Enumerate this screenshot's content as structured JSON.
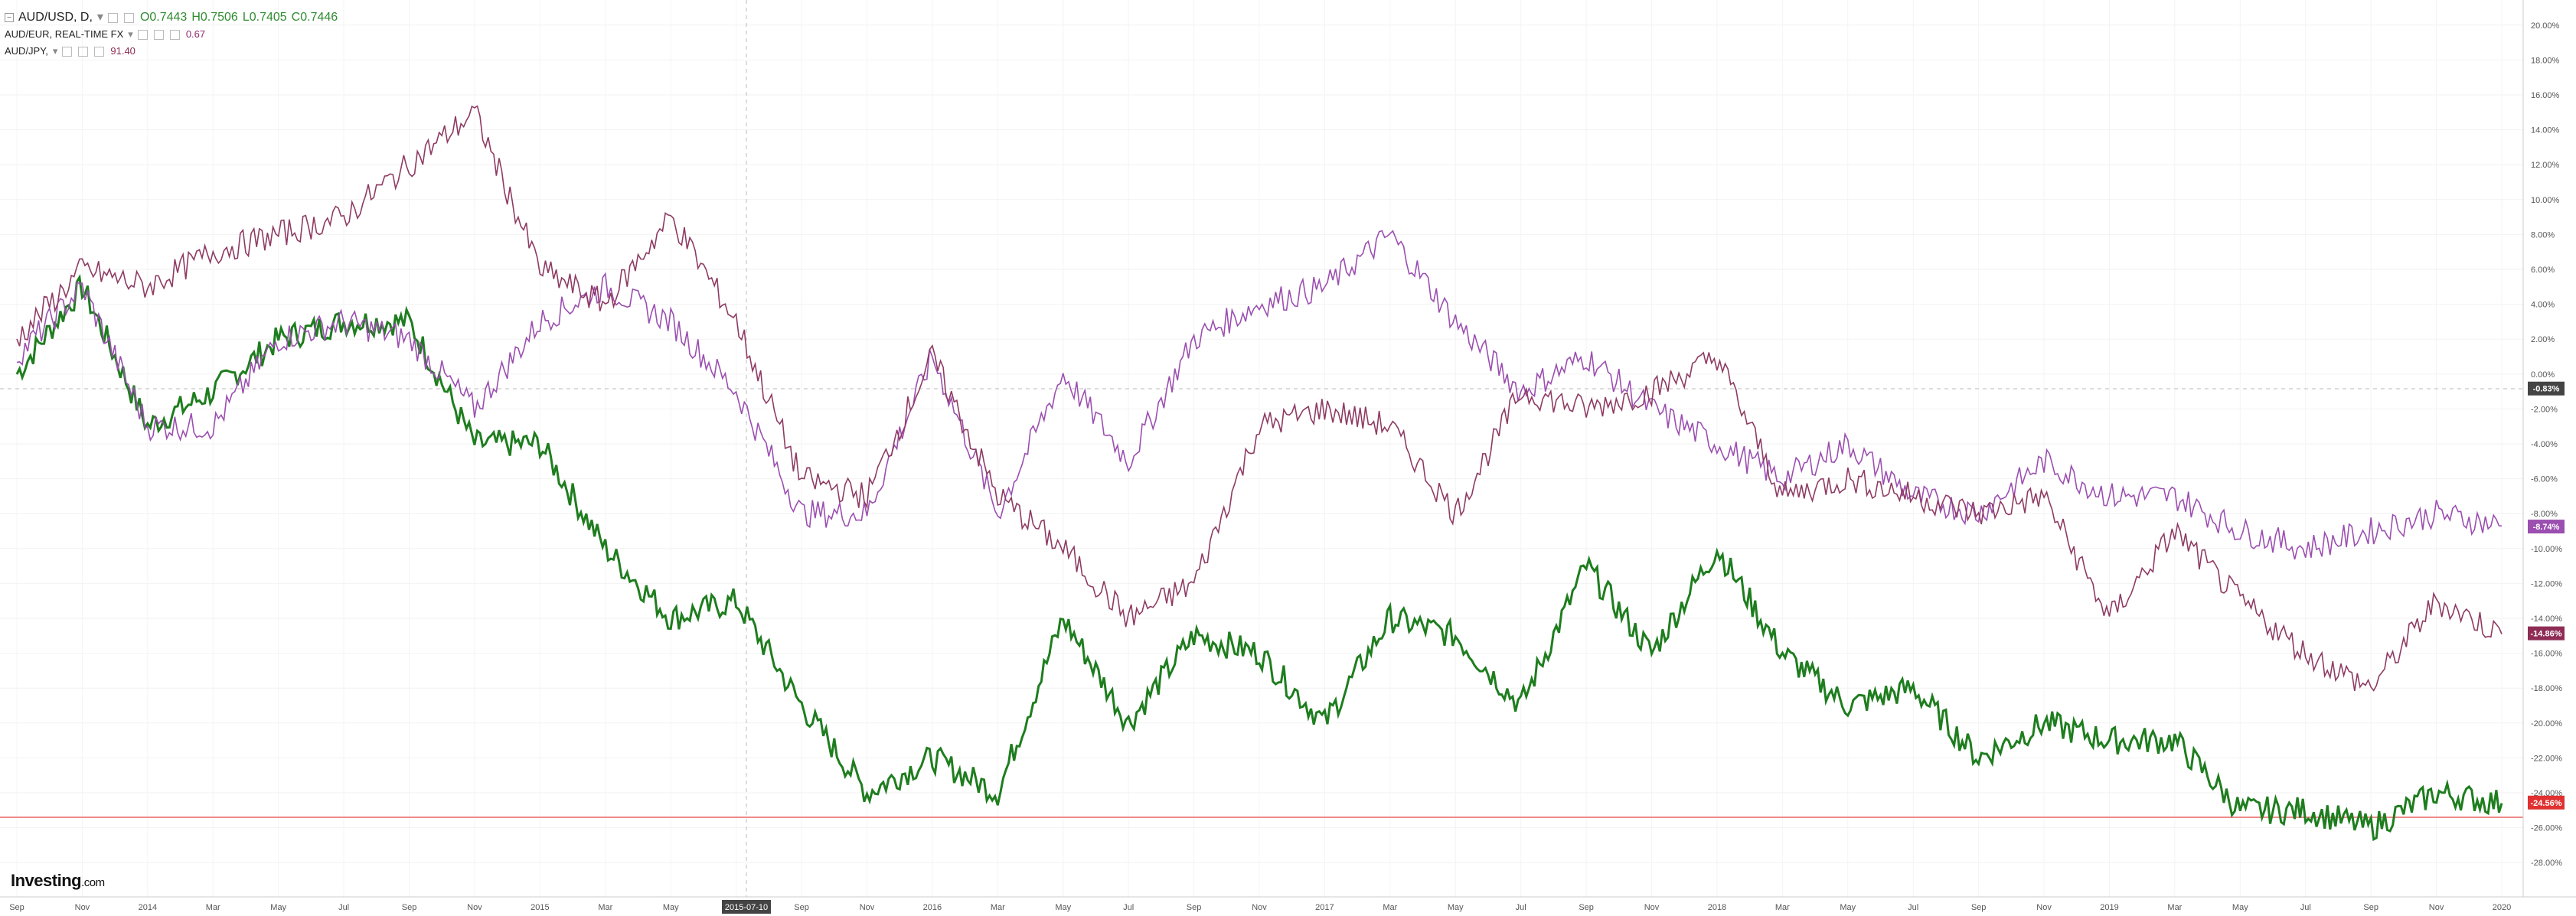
{
  "legend": {
    "main": {
      "symbol": "AUD/USD, D,",
      "open": "O0.7443",
      "high": "H0.7506",
      "low": "L0.7405",
      "close": "C0.7446"
    },
    "s2": {
      "symbol": "AUD/EUR, REAL-TIME FX",
      "value": "0.67"
    },
    "s3": {
      "symbol": "AUD/JPY,",
      "value": "91.40"
    }
  },
  "crosshair_date": "2015-07-10",
  "logo": {
    "name": "Investing",
    "suffix": ".com"
  },
  "colors": {
    "usd": "#1e7d1e",
    "usd_down": "#8b1a1a",
    "eur": "#9b4fb0",
    "jpy": "#8e3b63",
    "baseline": "#f08a8a"
  },
  "chart_data": {
    "type": "line",
    "xlabels": [
      "Sep",
      "Nov",
      "2014",
      "Mar",
      "May",
      "Jul",
      "Sep",
      "Nov",
      "2015",
      "Mar",
      "May",
      "Jul",
      "Sep",
      "Nov",
      "2016",
      "Mar",
      "May",
      "Jul",
      "Sep",
      "Nov",
      "2017",
      "Mar",
      "May",
      "Jul",
      "Sep",
      "Nov",
      "2018",
      "Mar",
      "May",
      "Jul",
      "Sep",
      "Nov",
      "2019",
      "Mar",
      "May",
      "Jul",
      "Sep",
      "Nov",
      "2020"
    ],
    "yticks": [
      "20.00%",
      "18.00%",
      "16.00%",
      "14.00%",
      "12.00%",
      "10.00%",
      "8.00%",
      "6.00%",
      "4.00%",
      "2.00%",
      "0.00%",
      "-2.00%",
      "-4.00%",
      "-6.00%",
      "-8.00%",
      "-10.00%",
      "-12.00%",
      "-14.00%",
      "-16.00%",
      "-18.00%",
      "-20.00%",
      "-22.00%",
      "-24.00%",
      "-26.00%",
      "-28.00%"
    ],
    "ylim": [
      -29,
      21
    ],
    "price_labels": {
      "crosshair": "-0.83%",
      "eur": "-8.74%",
      "jpy": "-14.86%",
      "usd": "-24.56%"
    },
    "series": [
      {
        "name": "AUD/USD",
        "color": "#1e7d1e",
        "x": [
          0,
          1,
          2,
          3,
          4,
          5,
          6,
          7,
          8,
          9,
          10,
          11,
          12,
          13,
          14,
          15,
          16,
          17,
          18,
          19,
          20,
          21,
          22,
          23,
          24,
          25,
          26,
          27,
          28,
          29,
          30,
          31,
          32,
          33,
          34,
          35,
          36,
          37,
          38
        ],
        "y": [
          0,
          5,
          -3,
          -1,
          2,
          3,
          3,
          -4,
          -4,
          -10,
          -14,
          -13,
          -19,
          -24,
          -22,
          -24,
          -14,
          -20,
          -15,
          -16,
          -20,
          -14,
          -15,
          -19,
          -11,
          -16,
          -10,
          -16,
          -19,
          -18,
          -22,
          -20,
          -21,
          -21,
          -25,
          -25,
          -26,
          -24,
          -24.6
        ]
      },
      {
        "name": "AUD/EUR",
        "color": "#9b4fb0",
        "x": [
          0,
          1,
          2,
          3,
          4,
          5,
          6,
          7,
          8,
          9,
          10,
          11,
          12,
          13,
          14,
          15,
          16,
          17,
          18,
          19,
          20,
          21,
          22,
          23,
          24,
          25,
          26,
          27,
          28,
          29,
          30,
          31,
          32,
          33,
          34,
          35,
          36,
          37,
          38
        ],
        "y": [
          1,
          5,
          -3,
          -3,
          2,
          3,
          2,
          -2,
          3,
          5,
          3,
          -1,
          -8,
          -8,
          1,
          -8,
          0,
          -5,
          2,
          4,
          5,
          8,
          3,
          -1,
          1,
          -2,
          -4,
          -6,
          -4,
          -7,
          -8,
          -5,
          -7,
          -7,
          -9,
          -10,
          -9,
          -8,
          -8.7
        ]
      },
      {
        "name": "AUD/JPY",
        "color": "#8e3b63",
        "x": [
          0,
          1,
          2,
          3,
          4,
          5,
          6,
          7,
          8,
          9,
          10,
          11,
          12,
          13,
          14,
          15,
          16,
          17,
          18,
          19,
          20,
          21,
          22,
          23,
          24,
          25,
          26,
          27,
          28,
          29,
          30,
          31,
          32,
          33,
          34,
          35,
          36,
          37,
          38
        ],
        "y": [
          2,
          6,
          5,
          7,
          8,
          9,
          12,
          15,
          6,
          4,
          9,
          3,
          -6,
          -7,
          1,
          -7,
          -10,
          -14,
          -12,
          -3,
          -2,
          -3,
          -8,
          -1,
          -2,
          -1,
          1,
          -7,
          -6,
          -7,
          -8,
          -7,
          -14,
          -9,
          -13,
          -16,
          -18,
          -13,
          -14.9
        ]
      }
    ]
  }
}
